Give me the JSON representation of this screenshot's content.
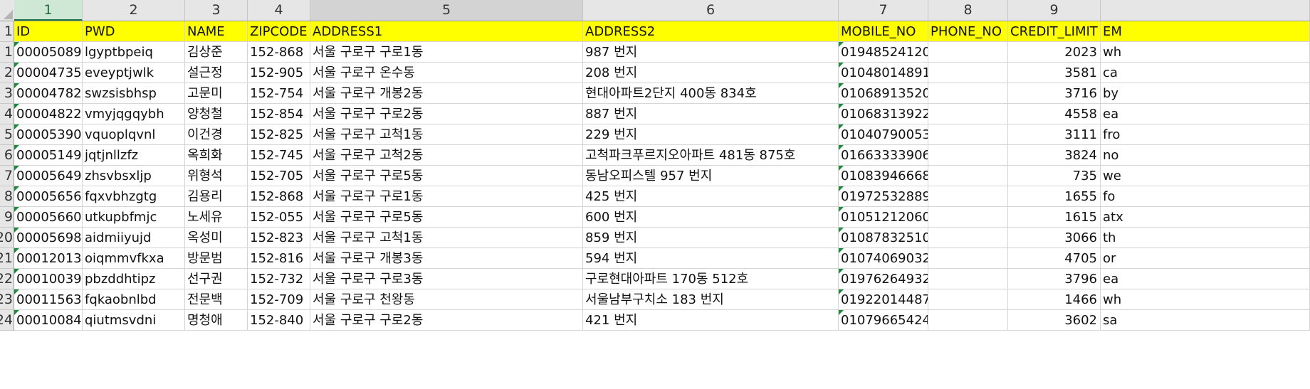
{
  "columns": [
    {
      "label": "1",
      "state": "selected"
    },
    {
      "label": "2",
      "state": ""
    },
    {
      "label": "3",
      "state": ""
    },
    {
      "label": "4",
      "state": ""
    },
    {
      "label": "5",
      "state": "highlight"
    },
    {
      "label": "6",
      "state": ""
    },
    {
      "label": "7",
      "state": ""
    },
    {
      "label": "8",
      "state": ""
    },
    {
      "label": "9",
      "state": ""
    },
    {
      "label": "",
      "state": ""
    }
  ],
  "header_row": {
    "number": "1",
    "cells": [
      "ID",
      "PWD",
      "NAME",
      "ZIPCODE",
      "ADDRESS1",
      "ADDRESS2",
      "MOBILE_NO",
      "PHONE_NO",
      "CREDIT_LIMIT",
      "EM"
    ]
  },
  "rows": [
    {
      "number": "1",
      "cells": [
        "00005089",
        "lgyptbpeiq",
        "김상준",
        "152-868",
        "서울 구로구 구로1동",
        " 987 번지",
        "01948524120",
        "",
        "2023",
        "wh"
      ]
    },
    {
      "number": "2",
      "cells": [
        "00004735",
        "eveyptjwlk",
        "설근정",
        "152-905",
        "서울 구로구 온수동",
        " 208 번지",
        "01048014891",
        "",
        "3581",
        "ca"
      ]
    },
    {
      "number": "3",
      "cells": [
        "00004782",
        "swzsisbhsp",
        "고문미",
        "152-754",
        "서울 구로구 개봉2동",
        "현대아파트2단지 400동 834호",
        "01068913520",
        "",
        "3716",
        "by"
      ]
    },
    {
      "number": "4",
      "cells": [
        "00004822",
        "vmyjqgqybh",
        "양청철",
        "152-854",
        "서울 구로구 구로2동",
        " 887 번지",
        "01068313922",
        "",
        "4558",
        "ea"
      ]
    },
    {
      "number": "5",
      "cells": [
        "00005390",
        "vquoplqvnl",
        "이건경",
        "152-825",
        "서울 구로구 고척1동",
        " 229 번지",
        "01040790053",
        "",
        "3111",
        "fro"
      ]
    },
    {
      "number": "6",
      "cells": [
        "00005149",
        "jqtjnllzfz",
        "옥희화",
        "152-745",
        "서울 구로구 고척2동",
        "고척파크푸르지오아파트 481동 875호",
        "01663333906",
        "",
        "3824",
        "no"
      ]
    },
    {
      "number": "7",
      "cells": [
        "00005649",
        "zhsvbsxljp",
        "위형석",
        "152-705",
        "서울 구로구 구로5동",
        "동남오피스텔 957 번지",
        "01083946668",
        "",
        "735",
        "we"
      ]
    },
    {
      "number": "8",
      "cells": [
        "00005656",
        "fqxvbhzgtg",
        "김용리",
        "152-868",
        "서울 구로구 구로1동",
        " 425 번지",
        "01972532889",
        "",
        "1655",
        "fo"
      ]
    },
    {
      "number": "9",
      "cells": [
        "00005660",
        "utkupbfmjc",
        "노세유",
        "152-055",
        "서울 구로구 구로5동",
        " 600 번지",
        "01051212060",
        "",
        "1615",
        "atx"
      ]
    },
    {
      "number": "20",
      "cells": [
        "00005698",
        "aidmiiyujd",
        "옥성미",
        "152-823",
        "서울 구로구 고척1동",
        " 859 번지",
        "01087832510",
        "",
        "3066",
        "th"
      ]
    },
    {
      "number": "21",
      "cells": [
        "00012013",
        "oiqmmvfkxa",
        "방문범",
        "152-816",
        "서울 구로구 개봉3동",
        " 594 번지",
        "01074069032",
        "",
        "4705",
        "or"
      ]
    },
    {
      "number": "22",
      "cells": [
        "00010039",
        "pbzddhtipz",
        "선구권",
        "152-732",
        "서울 구로구 구로3동",
        "구로현대아파트 170동 512호",
        "01976264932",
        "",
        "3796",
        "ea"
      ]
    },
    {
      "number": "23",
      "cells": [
        "00011563",
        "fqkaobnlbd",
        "전문백",
        "152-709",
        "서울 구로구 천왕동",
        "서울남부구치소 183 번지",
        "01922014487",
        "",
        "1466",
        "wh"
      ]
    },
    {
      "number": "24",
      "cells": [
        "00010084",
        "qiutmsvdni",
        "명청애",
        "152-840",
        "서울 구로구 구로2동",
        " 421 번지",
        "01079665424",
        "",
        "3602",
        "sa"
      ]
    }
  ],
  "colors": {
    "header_fill": "#ffff00",
    "selected_column_fill": "#cfe8d6",
    "selected_column_text": "#1c6b35",
    "error_indicator": "#1e8a3c"
  }
}
